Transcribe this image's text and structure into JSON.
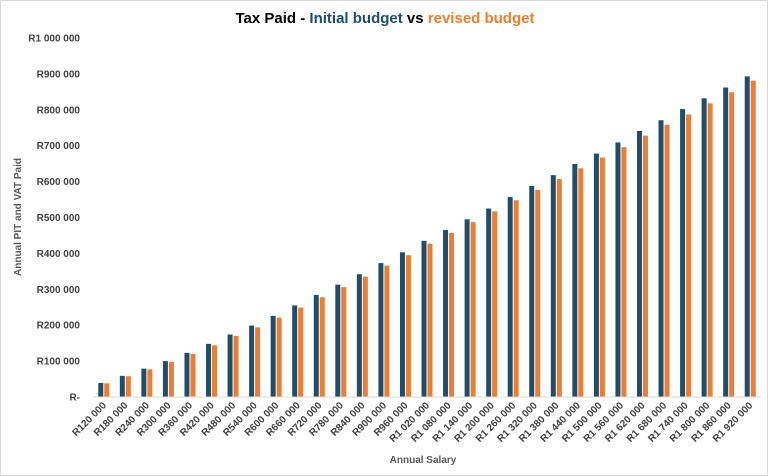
{
  "chart_data": {
    "type": "bar",
    "title": {
      "prefix": "Tax Paid - ",
      "series1": "Initial budget",
      "middle": " vs ",
      "series2": "revised budget"
    },
    "xlabel": "Annual Salary",
    "ylabel": "Annual PIT and VAT Paid",
    "ylim": [
      0,
      1000000
    ],
    "yticks": [
      0,
      100000,
      200000,
      300000,
      400000,
      500000,
      600000,
      700000,
      800000,
      900000,
      1000000
    ],
    "ytick_labels": [
      "R-",
      "R100 000",
      "R200 000",
      "R300 000",
      "R400 000",
      "R500 000",
      "R600 000",
      "R700 000",
      "R800 000",
      "R900 000",
      "R1 000 000"
    ],
    "grid": false,
    "legend": "none",
    "categories": [
      "R120 000",
      "R180 000",
      "R240 000",
      "R300 000",
      "R360 000",
      "R420 000",
      "R480 000",
      "R540 000",
      "R600 000",
      "R660 000",
      "R720 000",
      "R780 000",
      "R840 000",
      "R900 000",
      "R960 000",
      "R1 020 000",
      "R1 080 000",
      "R1 140 000",
      "R1 200 000",
      "R1 260 000",
      "R1 320 000",
      "R1 380 000",
      "R1 440 000",
      "R1 500 000",
      "R1 560 000",
      "R1 620 000",
      "R1 680 000",
      "R1 740 000",
      "R1 800 000",
      "R1 860 000",
      "R1 920 000"
    ],
    "series": [
      {
        "name": "Initial budget",
        "color": "#1f4e6b",
        "values": [
          39000,
          59000,
          79000,
          100000,
          123000,
          148000,
          174000,
          199000,
          226000,
          255000,
          284000,
          313000,
          342000,
          373000,
          403000,
          435000,
          465000,
          495000,
          525000,
          557000,
          588000,
          618000,
          649000,
          678000,
          709000,
          741000,
          771000,
          802000,
          832000,
          862000,
          893000
        ]
      },
      {
        "name": "revised budget",
        "color": "#ed7d31",
        "values": [
          38000,
          58000,
          77000,
          98000,
          120000,
          144000,
          170000,
          194000,
          221000,
          249000,
          278000,
          306000,
          335000,
          366000,
          395000,
          427000,
          457000,
          487000,
          517000,
          548000,
          577000,
          607000,
          637000,
          667000,
          696000,
          728000,
          758000,
          787000,
          818000,
          849000,
          881000
        ]
      }
    ]
  }
}
